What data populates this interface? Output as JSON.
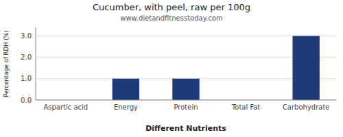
{
  "chart_data": {
    "type": "bar",
    "title": "Cucumber, with peel, raw per 100g",
    "subtitle": "www.dietandfitnesstoday.com",
    "xlabel": "Different Nutrients",
    "ylabel": "Percentage of RDH (%)",
    "categories": [
      "Aspartic acid",
      "Energy",
      "Protein",
      "Total Fat",
      "Carbohydrate"
    ],
    "values": [
      0.0,
      1.0,
      1.0,
      0.0,
      3.0
    ],
    "color": "#1f3a7a",
    "ylim": [
      0,
      3.4
    ],
    "yticks": [
      {
        "value": 0.0,
        "label": "0.0"
      },
      {
        "value": 1.0,
        "label": "1.0"
      },
      {
        "value": 2.0,
        "label": "2.0"
      },
      {
        "value": 3.0,
        "label": "3.0"
      }
    ],
    "grid": true
  }
}
